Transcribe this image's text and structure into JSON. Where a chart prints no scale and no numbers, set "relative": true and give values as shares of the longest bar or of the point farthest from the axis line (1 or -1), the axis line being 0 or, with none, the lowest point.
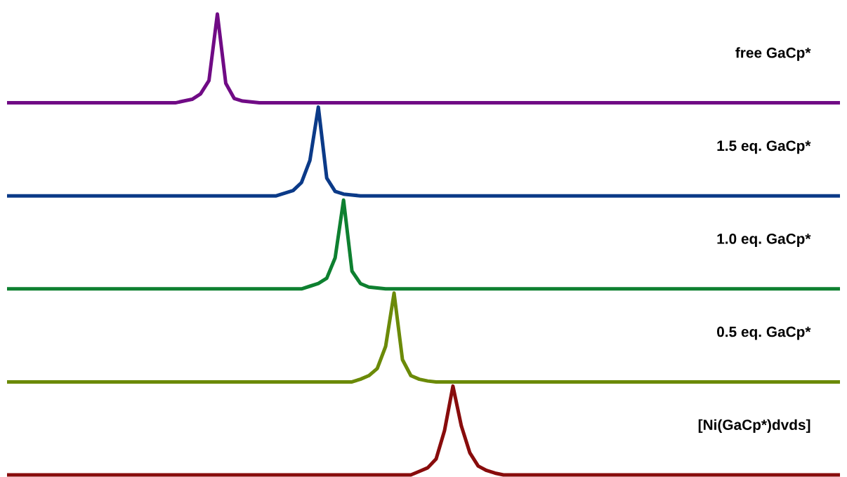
{
  "chart_data": [
    {
      "type": "line",
      "title": "free GaCp*",
      "relative": true,
      "categories": [
        null,
        null,
        null,
        null,
        null,
        null,
        null,
        null,
        null,
        null,
        null,
        null,
        null,
        null,
        null,
        null,
        null,
        null,
        null,
        null,
        null,
        null,
        null,
        null,
        null,
        null,
        null,
        null,
        null,
        null,
        null,
        null,
        null,
        null,
        null,
        null,
        null,
        null,
        null,
        null,
        null,
        null,
        null,
        null,
        null,
        null,
        null,
        null,
        null,
        null,
        null,
        null,
        null,
        null,
        null,
        null,
        null,
        null,
        null,
        null,
        null,
        null,
        null,
        null,
        null,
        null,
        null,
        null,
        null,
        null,
        null,
        null,
        null,
        null,
        null,
        null,
        null,
        null,
        null,
        null,
        null,
        null,
        null,
        null,
        null,
        null,
        null,
        null,
        null,
        null,
        null,
        null,
        null,
        null,
        null,
        null,
        null,
        null,
        null,
        null
      ],
      "series": [
        {
          "color": "#700b85",
          "values": [
            0,
            0,
            0,
            0,
            0,
            0,
            0,
            0,
            0,
            0,
            0,
            0,
            0,
            0,
            0,
            0,
            0,
            0,
            0,
            0,
            0,
            0.02,
            0.04,
            0.1,
            0.25,
            1,
            0.22,
            0.05,
            0.02,
            0.01,
            0,
            0,
            0,
            0,
            0,
            0,
            0,
            0,
            0,
            0,
            0,
            0,
            0,
            0,
            0,
            0,
            0,
            0,
            0,
            0,
            0,
            0,
            0,
            0,
            0,
            0,
            0,
            0,
            0,
            0,
            0,
            0,
            0,
            0,
            0,
            0,
            0,
            0,
            0,
            0,
            0,
            0,
            0,
            0,
            0,
            0,
            0,
            0,
            0,
            0,
            0,
            0,
            0,
            0,
            0,
            0,
            0,
            0,
            0,
            0,
            0,
            0,
            0,
            0,
            0,
            0,
            0,
            0,
            0,
            0
          ]
        }
      ]
    },
    {
      "type": "line",
      "title": "1.5 eq. GaCp*",
      "relative": true,
      "categories": [
        null,
        null,
        null,
        null,
        null,
        null,
        null,
        null,
        null,
        null,
        null,
        null,
        null,
        null,
        null,
        null,
        null,
        null,
        null,
        null,
        null,
        null,
        null,
        null,
        null,
        null,
        null,
        null,
        null,
        null,
        null,
        null,
        null,
        null,
        null,
        null,
        null,
        null,
        null,
        null,
        null,
        null,
        null,
        null,
        null,
        null,
        null,
        null,
        null,
        null,
        null,
        null,
        null,
        null,
        null,
        null,
        null,
        null,
        null,
        null,
        null,
        null,
        null,
        null,
        null,
        null,
        null,
        null,
        null,
        null,
        null,
        null,
        null,
        null,
        null,
        null,
        null,
        null,
        null,
        null,
        null,
        null,
        null,
        null,
        null,
        null,
        null,
        null,
        null,
        null,
        null,
        null,
        null,
        null,
        null,
        null,
        null,
        null,
        null,
        null
      ],
      "series": [
        {
          "color": "#0b3a88",
          "values": [
            0,
            0,
            0,
            0,
            0,
            0,
            0,
            0,
            0,
            0,
            0,
            0,
            0,
            0,
            0,
            0,
            0,
            0,
            0,
            0,
            0,
            0,
            0,
            0,
            0,
            0,
            0,
            0,
            0,
            0,
            0,
            0,
            0,
            0.03,
            0.06,
            0.15,
            0.4,
            1,
            0.2,
            0.05,
            0.02,
            0.01,
            0,
            0,
            0,
            0,
            0,
            0,
            0,
            0,
            0,
            0,
            0,
            0,
            0,
            0,
            0,
            0,
            0,
            0,
            0,
            0,
            0,
            0,
            0,
            0,
            0,
            0,
            0,
            0,
            0,
            0,
            0,
            0,
            0,
            0,
            0,
            0,
            0,
            0,
            0,
            0,
            0,
            0,
            0,
            0,
            0,
            0,
            0,
            0,
            0,
            0,
            0,
            0,
            0,
            0,
            0,
            0,
            0,
            0
          ]
        }
      ]
    },
    {
      "type": "line",
      "title": "1.0 eq. GaCp*",
      "relative": true,
      "categories": [
        null,
        null,
        null,
        null,
        null,
        null,
        null,
        null,
        null,
        null,
        null,
        null,
        null,
        null,
        null,
        null,
        null,
        null,
        null,
        null,
        null,
        null,
        null,
        null,
        null,
        null,
        null,
        null,
        null,
        null,
        null,
        null,
        null,
        null,
        null,
        null,
        null,
        null,
        null,
        null,
        null,
        null,
        null,
        null,
        null,
        null,
        null,
        null,
        null,
        null,
        null,
        null,
        null,
        null,
        null,
        null,
        null,
        null,
        null,
        null,
        null,
        null,
        null,
        null,
        null,
        null,
        null,
        null,
        null,
        null,
        null,
        null,
        null,
        null,
        null,
        null,
        null,
        null,
        null,
        null,
        null,
        null,
        null,
        null,
        null,
        null,
        null,
        null,
        null,
        null,
        null,
        null,
        null,
        null,
        null,
        null,
        null,
        null,
        null,
        null
      ],
      "series": [
        {
          "color": "#0e8030",
          "values": [
            0,
            0,
            0,
            0,
            0,
            0,
            0,
            0,
            0,
            0,
            0,
            0,
            0,
            0,
            0,
            0,
            0,
            0,
            0,
            0,
            0,
            0,
            0,
            0,
            0,
            0,
            0,
            0,
            0,
            0,
            0,
            0,
            0,
            0,
            0,
            0,
            0.03,
            0.06,
            0.12,
            0.35,
            1,
            0.2,
            0.06,
            0.02,
            0.01,
            0,
            0,
            0,
            0,
            0,
            0,
            0,
            0,
            0,
            0,
            0,
            0,
            0,
            0,
            0,
            0,
            0,
            0,
            0,
            0,
            0,
            0,
            0,
            0,
            0,
            0,
            0,
            0,
            0,
            0,
            0,
            0,
            0,
            0,
            0,
            0,
            0,
            0,
            0,
            0,
            0,
            0,
            0,
            0,
            0,
            0,
            0,
            0,
            0,
            0,
            0,
            0,
            0,
            0,
            0
          ]
        }
      ]
    },
    {
      "type": "line",
      "title": "0.5 eq. GaCp*",
      "relative": true,
      "categories": [
        null,
        null,
        null,
        null,
        null,
        null,
        null,
        null,
        null,
        null,
        null,
        null,
        null,
        null,
        null,
        null,
        null,
        null,
        null,
        null,
        null,
        null,
        null,
        null,
        null,
        null,
        null,
        null,
        null,
        null,
        null,
        null,
        null,
        null,
        null,
        null,
        null,
        null,
        null,
        null,
        null,
        null,
        null,
        null,
        null,
        null,
        null,
        null,
        null,
        null,
        null,
        null,
        null,
        null,
        null,
        null,
        null,
        null,
        null,
        null,
        null,
        null,
        null,
        null,
        null,
        null,
        null,
        null,
        null,
        null,
        null,
        null,
        null,
        null,
        null,
        null,
        null,
        null,
        null,
        null,
        null,
        null,
        null,
        null,
        null,
        null,
        null,
        null,
        null,
        null,
        null,
        null,
        null,
        null,
        null,
        null,
        null,
        null,
        null,
        null
      ],
      "series": [
        {
          "color": "#6b8a08",
          "values": [
            0,
            0,
            0,
            0,
            0,
            0,
            0,
            0,
            0,
            0,
            0,
            0,
            0,
            0,
            0,
            0,
            0,
            0,
            0,
            0,
            0,
            0,
            0,
            0,
            0,
            0,
            0,
            0,
            0,
            0,
            0,
            0,
            0,
            0,
            0,
            0,
            0,
            0,
            0,
            0,
            0,
            0,
            0.03,
            0.07,
            0.15,
            0.4,
            1,
            0.25,
            0.07,
            0.03,
            0.01,
            0,
            0,
            0,
            0,
            0,
            0,
            0,
            0,
            0,
            0,
            0,
            0,
            0,
            0,
            0,
            0,
            0,
            0,
            0,
            0,
            0,
            0,
            0,
            0,
            0,
            0,
            0,
            0,
            0,
            0,
            0,
            0,
            0,
            0,
            0,
            0,
            0,
            0,
            0,
            0,
            0,
            0,
            0,
            0,
            0,
            0,
            0,
            0,
            0
          ]
        }
      ]
    },
    {
      "type": "line",
      "title": "[Ni(GaCp*)dvds]",
      "relative": true,
      "categories": [
        null,
        null,
        null,
        null,
        null,
        null,
        null,
        null,
        null,
        null,
        null,
        null,
        null,
        null,
        null,
        null,
        null,
        null,
        null,
        null,
        null,
        null,
        null,
        null,
        null,
        null,
        null,
        null,
        null,
        null,
        null,
        null,
        null,
        null,
        null,
        null,
        null,
        null,
        null,
        null,
        null,
        null,
        null,
        null,
        null,
        null,
        null,
        null,
        null,
        null,
        null,
        null,
        null,
        null,
        null,
        null,
        null,
        null,
        null,
        null,
        null,
        null,
        null,
        null,
        null,
        null,
        null,
        null,
        null,
        null,
        null,
        null,
        null,
        null,
        null,
        null,
        null,
        null,
        null,
        null,
        null,
        null,
        null,
        null,
        null,
        null,
        null,
        null,
        null,
        null,
        null,
        null,
        null,
        null,
        null,
        null,
        null,
        null,
        null,
        null
      ],
      "series": [
        {
          "color": "#880c0c",
          "values": [
            0,
            0,
            0,
            0,
            0,
            0,
            0,
            0,
            0,
            0,
            0,
            0,
            0,
            0,
            0,
            0,
            0,
            0,
            0,
            0,
            0,
            0,
            0,
            0,
            0,
            0,
            0,
            0,
            0,
            0,
            0,
            0,
            0,
            0,
            0,
            0,
            0,
            0,
            0,
            0,
            0,
            0,
            0,
            0,
            0,
            0,
            0,
            0,
            0,
            0.04,
            0.08,
            0.18,
            0.5,
            1,
            0.55,
            0.25,
            0.1,
            0.05,
            0.02,
            0,
            0,
            0,
            0,
            0,
            0,
            0,
            0,
            0,
            0,
            0,
            0,
            0,
            0,
            0,
            0,
            0,
            0,
            0,
            0,
            0,
            0,
            0,
            0,
            0,
            0,
            0,
            0,
            0,
            0,
            0,
            0,
            0,
            0,
            0,
            0,
            0,
            0,
            0,
            0,
            0
          ]
        }
      ]
    }
  ]
}
